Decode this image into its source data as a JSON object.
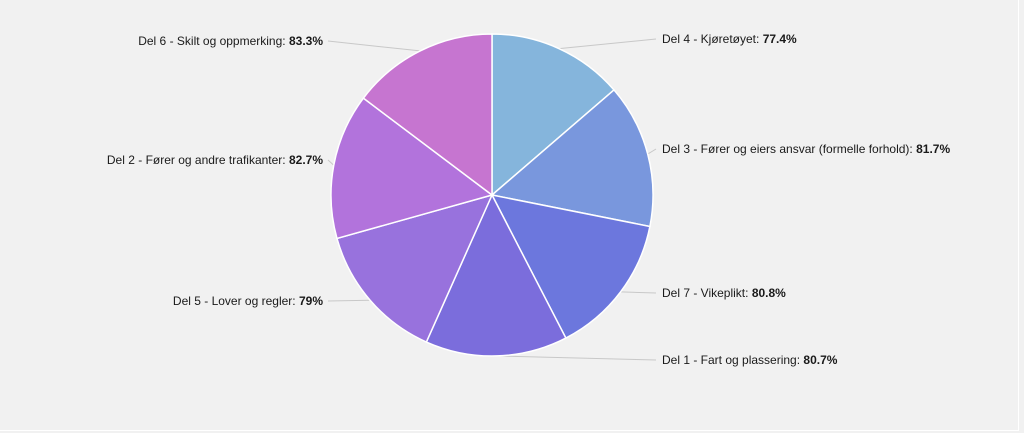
{
  "chart_data": {
    "type": "pie",
    "series": [
      {
        "name": "Del 4 - Kjøretøyet",
        "value": 77.4,
        "label": "77.4%",
        "color": "#85b5dc"
      },
      {
        "name": "Del 3 - Fører og eiers ansvar (formelle forhold)",
        "value": 81.7,
        "label": "81.7%",
        "color": "#7997dd"
      },
      {
        "name": "Del 7 - Vikeplikt",
        "value": 80.8,
        "label": "80.8%",
        "color": "#6c77dd"
      },
      {
        "name": "Del 1 - Fart og plassering",
        "value": 80.7,
        "label": "80.7%",
        "color": "#7b6ddc"
      },
      {
        "name": "Del 5 - Lover og regler",
        "value": 79,
        "label": "79%",
        "color": "#9872dd"
      },
      {
        "name": "Del 2 - Fører og andre trafikanter",
        "value": 82.7,
        "label": "82.7%",
        "color": "#b273dc"
      },
      {
        "name": "Del 6 - Skilt og oppmerking",
        "value": 83.3,
        "label": "83.3%",
        "color": "#c675d0"
      }
    ]
  }
}
